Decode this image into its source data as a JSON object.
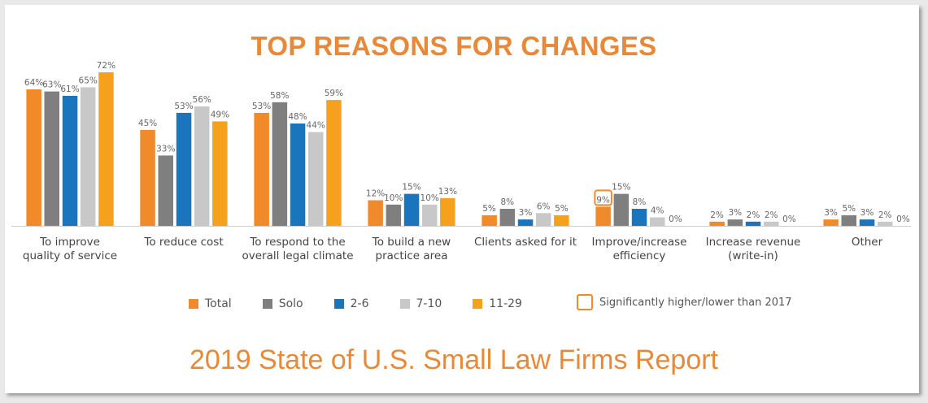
{
  "title": "TOP REASONS FOR CHANGES",
  "footer": "2019 State of U.S. Small Law Firms Report",
  "colors": {
    "title": "#e8893a",
    "Total": "#f08a2a",
    "Solo": "#7f7f7f",
    "2-6": "#1a75bc",
    "7-10": "#c8c8c8",
    "11-29": "#f6a11e",
    "highlight": "#f08a2a"
  },
  "legend": {
    "items": [
      "Total",
      "Solo",
      "2-6",
      "7-10",
      "11-29"
    ],
    "significance_note": "Significantly higher/lower than 2017"
  },
  "chart_data": {
    "type": "bar",
    "title": "TOP REASONS FOR CHANGES",
    "categories": [
      [
        "To improve",
        "quality of service"
      ],
      [
        "To reduce cost"
      ],
      [
        "To respond to the",
        "overall legal climate"
      ],
      [
        "To build a new",
        "practice area"
      ],
      [
        "Clients asked for it"
      ],
      [
        "Improve/increase",
        "efficiency"
      ],
      [
        "Increase revenue",
        "(write-in)"
      ],
      [
        "Other"
      ]
    ],
    "series": [
      {
        "name": "Total",
        "values": [
          64,
          45,
          53,
          12,
          5,
          9,
          2,
          3
        ]
      },
      {
        "name": "Solo",
        "values": [
          63,
          33,
          58,
          10,
          8,
          15,
          3,
          5
        ]
      },
      {
        "name": "2-6",
        "values": [
          61,
          53,
          48,
          15,
          3,
          8,
          2,
          3
        ]
      },
      {
        "name": "7-10",
        "values": [
          65,
          56,
          44,
          10,
          6,
          4,
          2,
          2
        ]
      },
      {
        "name": "11-29",
        "values": [
          72,
          49,
          59,
          13,
          5,
          0,
          0,
          0
        ]
      }
    ],
    "value_suffix": "%",
    "highlighted": [
      {
        "category_index": 5,
        "series": "Total"
      }
    ],
    "ylim": [
      0,
      80
    ],
    "grid": false,
    "legend_position": "bottom"
  }
}
